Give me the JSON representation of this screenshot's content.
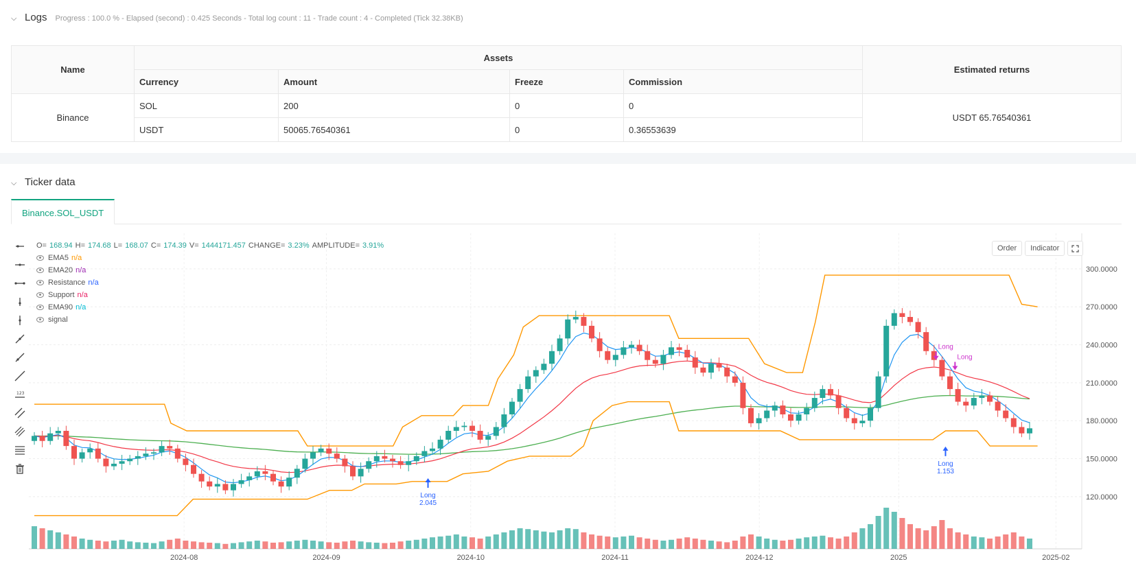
{
  "logs": {
    "title": "Logs",
    "meta": "Progress : 100.0 % - Elapsed (second) : 0.425   Seconds - Total log count : 11 - Trade count : 4 - Completed (Tick 32.38KB)"
  },
  "assets_table": {
    "headers": {
      "name": "Name",
      "assets": "Assets",
      "estimated": "Estimated returns",
      "currency": "Currency",
      "amount": "Amount",
      "freeze": "Freeze",
      "commission": "Commission"
    },
    "exchange": "Binance",
    "estimated_value": "USDT 65.76540361",
    "rows": [
      {
        "currency": "SOL",
        "amount": "200",
        "freeze": "0",
        "commission": "0"
      },
      {
        "currency": "USDT",
        "amount": "50065.76540361",
        "freeze": "0",
        "commission": "0.36553639"
      }
    ]
  },
  "ticker": {
    "title": "Ticker data",
    "tab": "Binance.SOL_USDT"
  },
  "chart_controls": {
    "order": "Order",
    "indicator": "Indicator"
  },
  "legend": {
    "ohlc": {
      "o_label": "O=",
      "o": "168.94",
      "h_label": "H=",
      "h": "174.68",
      "l_label": "L=",
      "l": "168.07",
      "c_label": "C=",
      "c": "174.39",
      "v_label": "V=",
      "v": "1444171.457",
      "chg_label": "CHANGE=",
      "chg": "3.23%",
      "amp_label": "AMPLITUDE=",
      "amp": "3.91%"
    },
    "items": [
      {
        "name": "EMA5",
        "value": "n/a",
        "color": "#ff9800"
      },
      {
        "name": "EMA20",
        "value": "n/a",
        "color": "#9c27b0"
      },
      {
        "name": "Resistance",
        "value": "n/a",
        "color": "#2962ff"
      },
      {
        "name": "Support",
        "value": "n/a",
        "color": "#e91e63"
      },
      {
        "name": "EMA90",
        "value": "n/a",
        "color": "#00bcd4"
      },
      {
        "name": "signal",
        "value": "",
        "color": "#888888"
      }
    ]
  },
  "chart_data": {
    "type": "candlestick",
    "y_ticks": [
      "300.0000",
      "270.0000",
      "240.0000",
      "210.0000",
      "180.0000",
      "150.0000",
      "120.0000"
    ],
    "x_ticks": [
      "2024-08",
      "2024-09",
      "2024-10",
      "2024-11",
      "2024-12",
      "2025",
      "2025-02"
    ],
    "ylim": [
      95,
      320
    ],
    "colors": {
      "up": "#26a69a",
      "down": "#ef5350",
      "ema5": "#2196f3",
      "ema20": "#f23645",
      "ema90": "#4caf50",
      "sr": "#ff9800",
      "signal": "#2962ff",
      "exit": "#cc33cc"
    },
    "close": [
      168,
      164,
      170,
      172,
      160,
      150,
      155,
      158,
      150,
      144,
      146,
      148,
      150,
      152,
      154,
      155,
      160,
      158,
      150,
      145,
      138,
      132,
      128,
      130,
      125,
      130,
      133,
      136,
      140,
      138,
      132,
      128,
      135,
      142,
      150,
      155,
      158,
      154,
      150,
      144,
      136,
      142,
      148,
      152,
      150,
      148,
      145,
      148,
      152,
      156,
      158,
      165,
      172,
      175,
      176,
      172,
      165,
      168,
      175,
      185,
      195,
      205,
      215,
      220,
      225,
      235,
      245,
      260,
      262,
      255,
      245,
      235,
      228,
      232,
      238,
      240,
      235,
      228,
      225,
      232,
      238,
      236,
      230,
      222,
      218,
      225,
      222,
      215,
      210,
      190,
      178,
      182,
      188,
      192,
      185,
      180,
      185,
      190,
      198,
      205,
      200,
      190,
      182,
      178,
      180,
      190,
      215,
      255,
      265,
      262,
      258,
      250,
      235,
      228,
      215,
      205,
      195,
      192,
      198,
      200,
      195,
      188,
      182,
      175,
      170,
      174
    ],
    "volume_pct": [
      0.55,
      0.5,
      0.45,
      0.4,
      0.35,
      0.3,
      0.25,
      0.22,
      0.2,
      0.18,
      0.2,
      0.22,
      0.18,
      0.16,
      0.15,
      0.14,
      0.18,
      0.22,
      0.25,
      0.2,
      0.18,
      0.16,
      0.15,
      0.14,
      0.12,
      0.14,
      0.16,
      0.18,
      0.2,
      0.18,
      0.15,
      0.16,
      0.18,
      0.2,
      0.22,
      0.2,
      0.18,
      0.16,
      0.15,
      0.18,
      0.2,
      0.18,
      0.16,
      0.15,
      0.14,
      0.15,
      0.18,
      0.2,
      0.22,
      0.25,
      0.28,
      0.3,
      0.32,
      0.35,
      0.3,
      0.28,
      0.25,
      0.3,
      0.35,
      0.4,
      0.45,
      0.5,
      0.48,
      0.45,
      0.42,
      0.4,
      0.45,
      0.5,
      0.48,
      0.4,
      0.35,
      0.32,
      0.3,
      0.28,
      0.3,
      0.32,
      0.28,
      0.25,
      0.22,
      0.2,
      0.22,
      0.25,
      0.28,
      0.25,
      0.22,
      0.2,
      0.18,
      0.16,
      0.2,
      0.3,
      0.35,
      0.3,
      0.25,
      0.22,
      0.2,
      0.22,
      0.25,
      0.28,
      0.3,
      0.32,
      0.28,
      0.25,
      0.3,
      0.4,
      0.5,
      0.6,
      0.8,
      1.0,
      0.9,
      0.75,
      0.6,
      0.5,
      0.45,
      0.55,
      0.7,
      0.5,
      0.4,
      0.35,
      0.3,
      0.28,
      0.25,
      0.3,
      0.35,
      0.4,
      0.3,
      0.25
    ],
    "resistance": [
      [
        0,
        193
      ],
      [
        41,
        193
      ],
      [
        43,
        178
      ],
      [
        48,
        172
      ],
      [
        83,
        172
      ],
      [
        86,
        160
      ],
      [
        113,
        160
      ],
      [
        116,
        175
      ],
      [
        122,
        184
      ],
      [
        132,
        184
      ],
      [
        135,
        192
      ],
      [
        143,
        192
      ],
      [
        146,
        213
      ],
      [
        151,
        232
      ],
      [
        154,
        254
      ],
      [
        159,
        263
      ],
      [
        200,
        263
      ],
      [
        203,
        245
      ],
      [
        225,
        245
      ],
      [
        230,
        225
      ],
      [
        237,
        218
      ],
      [
        242,
        218
      ],
      [
        246,
        258
      ],
      [
        249,
        295
      ],
      [
        307,
        295
      ],
      [
        311,
        272
      ],
      [
        316,
        270
      ]
    ],
    "support": [
      [
        0,
        105
      ],
      [
        45,
        105
      ],
      [
        50,
        118
      ],
      [
        86,
        118
      ],
      [
        93,
        125
      ],
      [
        100,
        125
      ],
      [
        104,
        130
      ],
      [
        114,
        130
      ],
      [
        119,
        132
      ],
      [
        130,
        132
      ],
      [
        135,
        138
      ],
      [
        143,
        140
      ],
      [
        149,
        148
      ],
      [
        156,
        152
      ],
      [
        169,
        152
      ],
      [
        173,
        160
      ],
      [
        176,
        180
      ],
      [
        182,
        192
      ],
      [
        187,
        195
      ],
      [
        200,
        195
      ],
      [
        203,
        172
      ],
      [
        235,
        172
      ],
      [
        241,
        165
      ],
      [
        283,
        165
      ],
      [
        287,
        172
      ],
      [
        297,
        172
      ],
      [
        301,
        160
      ],
      [
        316,
        160
      ]
    ],
    "markers": [
      {
        "type": "entry",
        "label": "Long",
        "qty": "2.045",
        "index": 124,
        "price": 140
      },
      {
        "type": "entry",
        "label": "Long",
        "qty": "1.153",
        "index": 287,
        "price": 165
      },
      {
        "type": "exit",
        "label": "Long",
        "index": 284,
        "price": 228
      },
      {
        "type": "exit",
        "label": "Long",
        "index": 290,
        "price": 220
      }
    ]
  }
}
